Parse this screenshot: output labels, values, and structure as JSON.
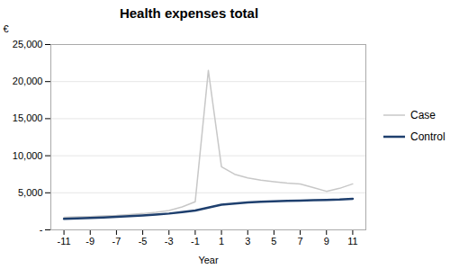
{
  "chart_data": {
    "type": "line",
    "title": "Health expenses total",
    "xlabel": "Year",
    "ylabel": "€",
    "x": [
      -11,
      -10,
      -9,
      -8,
      -7,
      -6,
      -5,
      -4,
      -3,
      -2,
      -1,
      0,
      1,
      2,
      3,
      4,
      5,
      6,
      7,
      8,
      9,
      10,
      11
    ],
    "series": [
      {
        "name": "Case",
        "color": "#c8c8c8",
        "values": [
          1700,
          1750,
          1800,
          1875,
          1950,
          2075,
          2200,
          2380,
          2600,
          3100,
          3800,
          21500,
          8500,
          7500,
          7000,
          6700,
          6500,
          6300,
          6200,
          5700,
          5200,
          5600,
          6200
        ]
      },
      {
        "name": "Control",
        "color": "#1e3f6e",
        "values": [
          1500,
          1550,
          1600,
          1675,
          1750,
          1850,
          1950,
          2075,
          2200,
          2400,
          2600,
          3000,
          3400,
          3550,
          3700,
          3800,
          3850,
          3900,
          3950,
          4000,
          4050,
          4100,
          4200
        ]
      }
    ],
    "xlim": [
      -12,
      12
    ],
    "xticks": [
      -11,
      -9,
      -7,
      -5,
      -3,
      -1,
      1,
      3,
      5,
      7,
      9,
      11
    ],
    "ylim": [
      0,
      25000
    ],
    "yticks": [
      {
        "value": 0,
        "label": "-"
      },
      {
        "value": 5000,
        "label": "5,000"
      },
      {
        "value": 10000,
        "label": "10,000"
      },
      {
        "value": 15000,
        "label": "15,000"
      },
      {
        "value": 20000,
        "label": "20,000"
      },
      {
        "value": 25000,
        "label": "25,000"
      }
    ],
    "grid": true,
    "legend": "right"
  }
}
